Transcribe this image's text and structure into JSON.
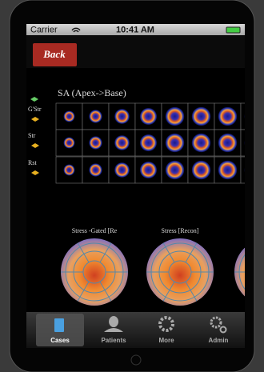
{
  "status_bar": {
    "carrier": "Carrier",
    "time": "10:41 AM"
  },
  "nav_bar": {
    "back_button": "Back"
  },
  "scan_panel": {
    "title": "SA (Apex->Base)",
    "row_labels": [
      "G'Str",
      "Str",
      "Rst"
    ]
  },
  "polar_maps": {
    "titles": [
      "Stress -Gated [Re",
      "Stress [Recon]"
    ]
  },
  "tab_bar": {
    "tabs": [
      "Cases",
      "Patients",
      "More",
      "Admin"
    ]
  }
}
